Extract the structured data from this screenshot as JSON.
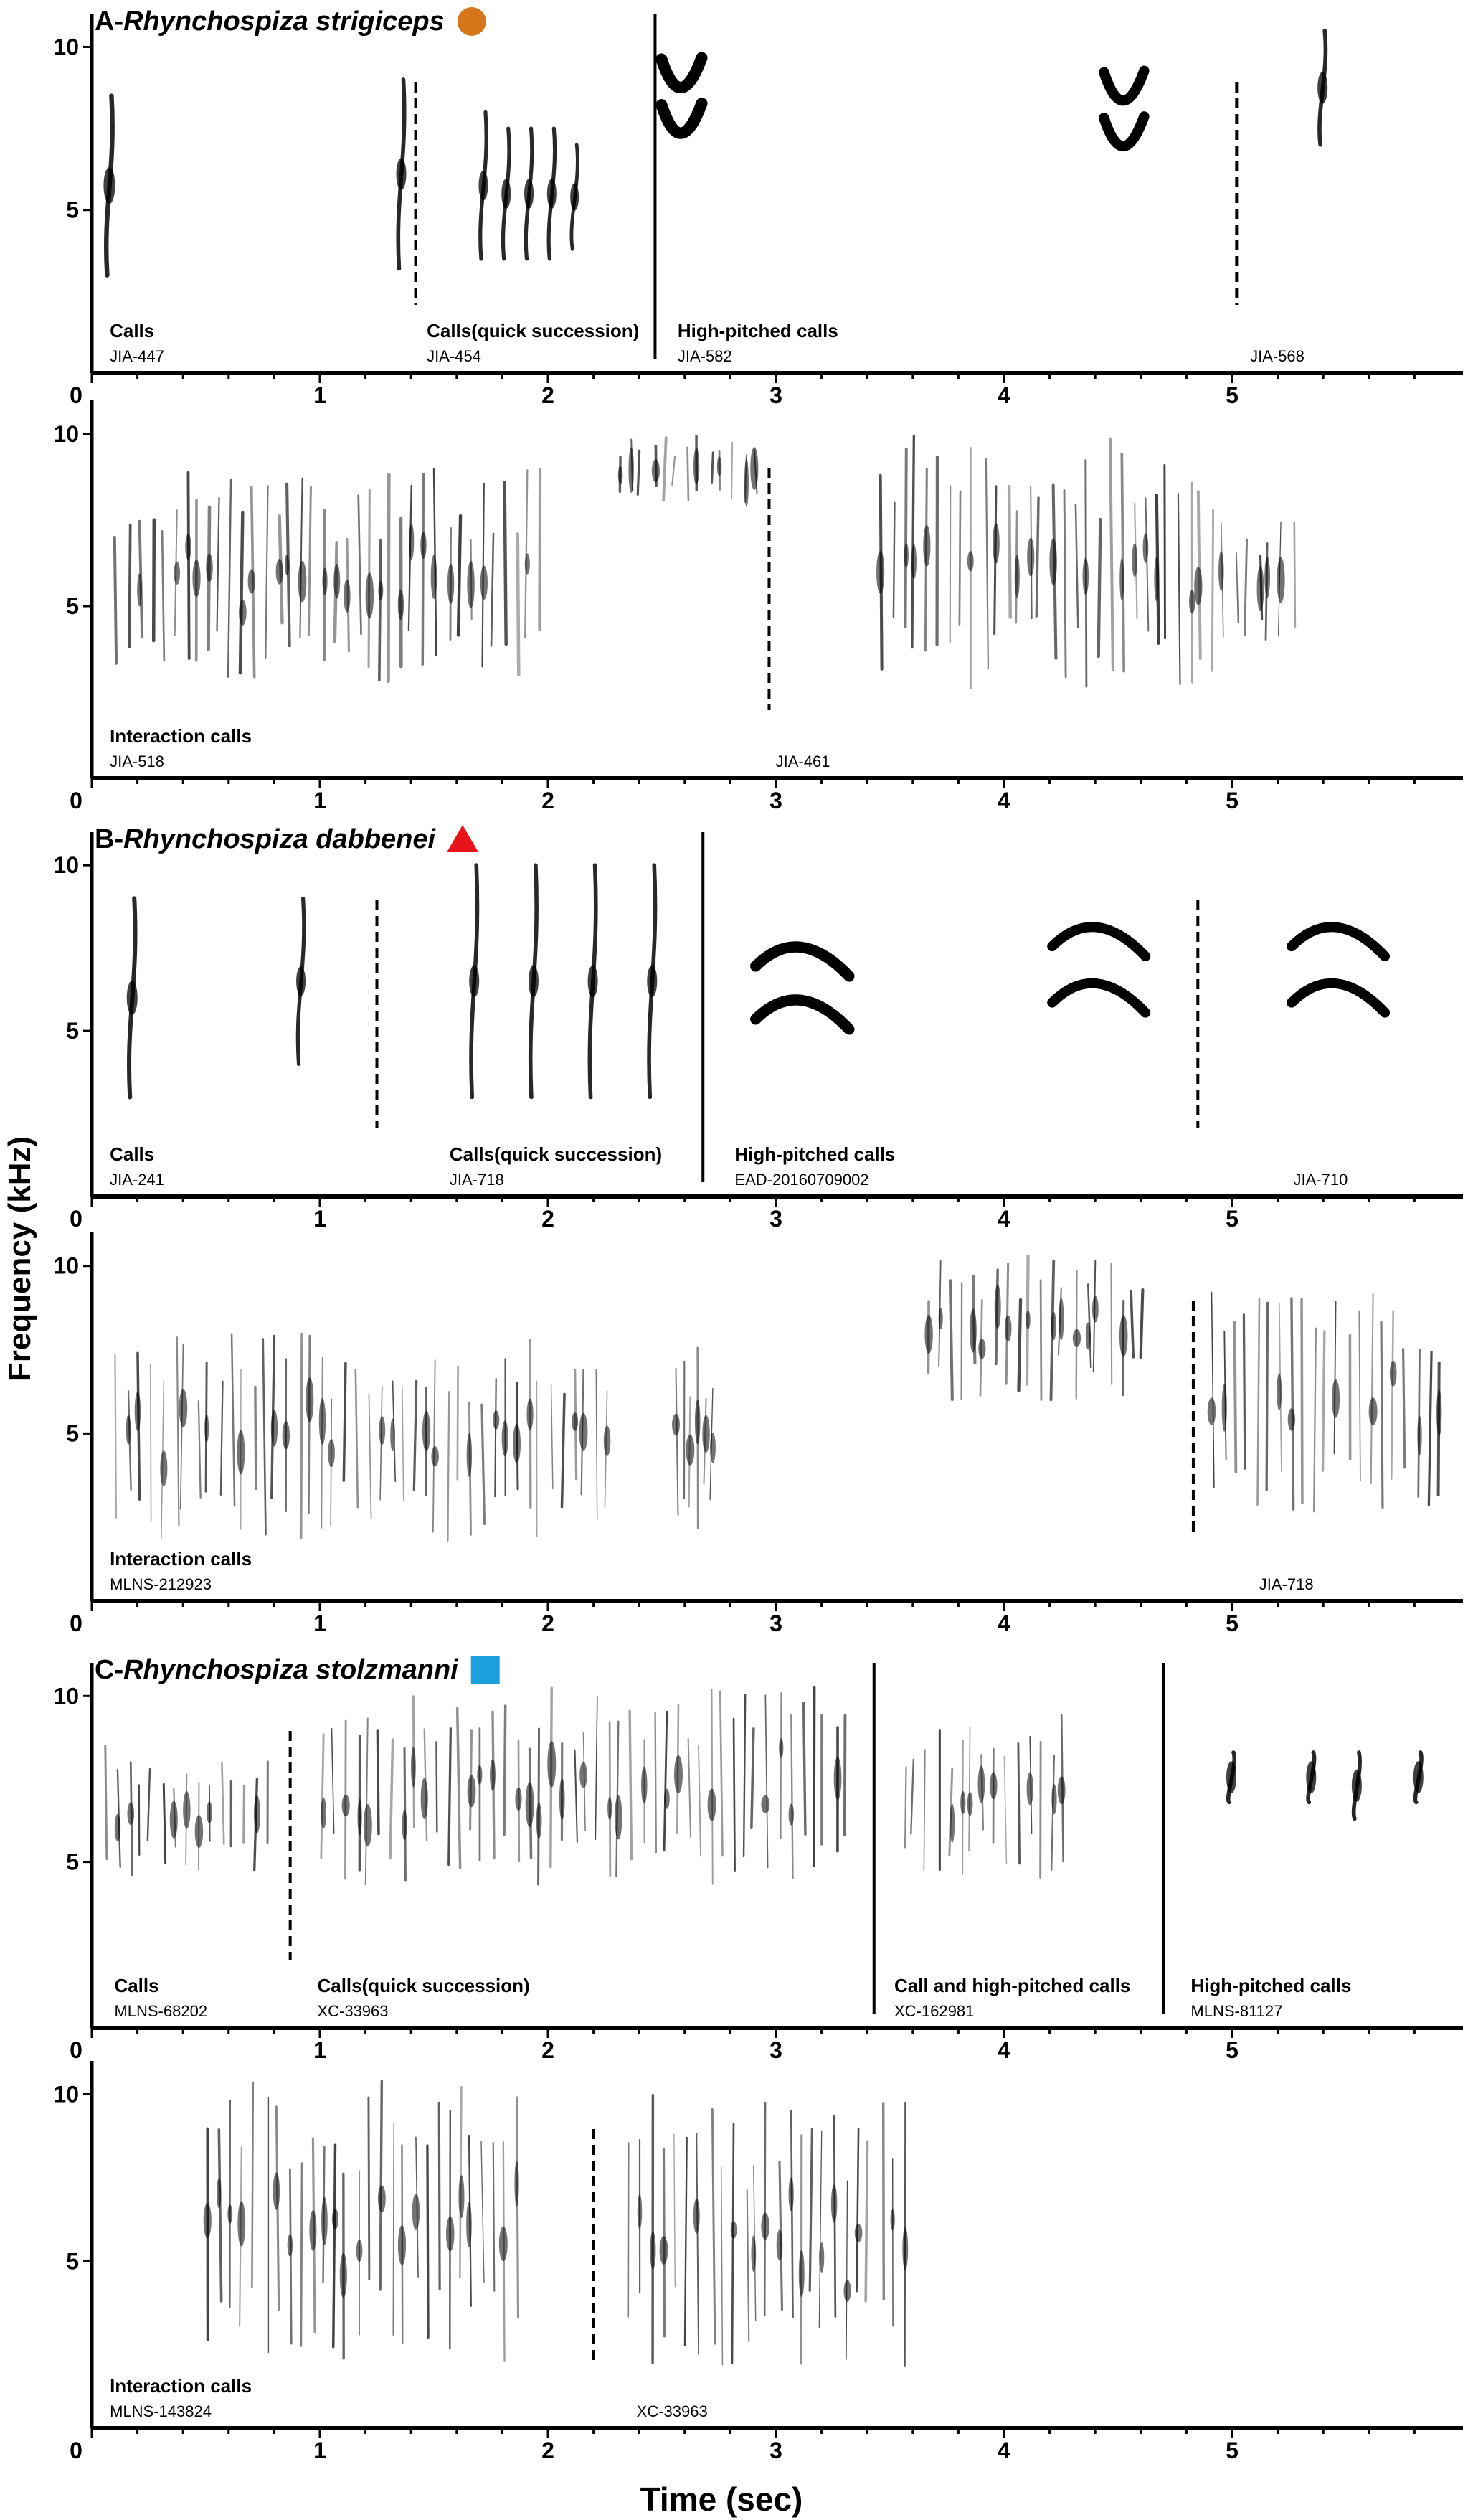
{
  "chart_data": {
    "type": "spectrogram",
    "ylabel": "Frequency (kHz)",
    "xlabel": "Time (sec)",
    "xlim": [
      0,
      6
    ],
    "ylim": [
      0,
      11
    ],
    "x_ticks": [
      0,
      1,
      2,
      3,
      4,
      5
    ],
    "y_ticks": [
      5,
      10
    ],
    "y_zero_label": "0",
    "panels": [
      {
        "id": "A1",
        "species_prefix": "A-",
        "species": "Rhynchospiza strigiceps",
        "marker": {
          "shape": "circle",
          "color": "#D6761A"
        },
        "separators": [
          {
            "x": 1.42,
            "style": "dashed"
          },
          {
            "x": 2.47,
            "style": "solid"
          },
          {
            "x": 5.02,
            "style": "dashed"
          }
        ],
        "segments": [
          {
            "label": "Calls",
            "code": "JIA-447",
            "x": 0.06
          },
          {
            "label": "Calls(quick succession)",
            "code": "JIA-454",
            "x": 1.45
          },
          {
            "label": "High-pitched calls",
            "code": "JIA-582",
            "x": 2.55
          },
          {
            "label": "",
            "code": "JIA-568",
            "x": 5.06
          }
        ],
        "events": [
          {
            "t": 0.08,
            "f0": 3.0,
            "f1": 8.5,
            "kind": "calls",
            "weight": 1.6
          },
          {
            "t": 1.36,
            "f0": 3.2,
            "f1": 9.0,
            "kind": "calls",
            "weight": 1.4
          },
          {
            "t": 1.72,
            "f0": 3.5,
            "f1": 8.0,
            "kind": "calls",
            "weight": 1.3
          },
          {
            "t": 1.82,
            "f0": 3.5,
            "f1": 7.5,
            "kind": "calls",
            "weight": 1.3
          },
          {
            "t": 1.92,
            "f0": 3.5,
            "f1": 7.5,
            "kind": "calls",
            "weight": 1.3
          },
          {
            "t": 2.02,
            "f0": 3.5,
            "f1": 7.5,
            "kind": "calls",
            "weight": 1.3
          },
          {
            "t": 2.12,
            "f0": 3.8,
            "f1": 7.0,
            "kind": "calls",
            "weight": 1.2
          },
          {
            "t": 2.58,
            "f_mid": 8.7,
            "kind": "chevron",
            "weight": 1.8
          },
          {
            "t": 2.58,
            "f_mid": 7.3,
            "kind": "chevron",
            "weight": 1.8
          },
          {
            "t": 4.52,
            "f_mid": 8.3,
            "kind": "chevron",
            "weight": 1.6
          },
          {
            "t": 4.52,
            "f_mid": 6.9,
            "kind": "chevron",
            "weight": 1.6
          },
          {
            "t": 5.4,
            "f0": 7.0,
            "f1": 10.5,
            "kind": "calls",
            "weight": 1.4
          }
        ]
      },
      {
        "id": "A2",
        "separators": [
          {
            "x": 2.97,
            "style": "dashed"
          }
        ],
        "segments": [
          {
            "label": "Interaction calls",
            "code": "JIA-518",
            "x": 0.06
          },
          {
            "label": "",
            "code": "JIA-461",
            "x": 2.98
          }
        ],
        "events": [
          {
            "t0": 0.1,
            "t1": 2.0,
            "f0": 2.8,
            "f1": 9.0,
            "kind": "dense",
            "weight": 1.2
          },
          {
            "t0": 2.3,
            "t1": 2.95,
            "f0": 8.0,
            "f1": 10.0,
            "kind": "dense",
            "weight": 1.0
          },
          {
            "t0": 3.45,
            "t1": 4.95,
            "f0": 2.5,
            "f1": 10.0,
            "kind": "dense",
            "weight": 1.1
          },
          {
            "t0": 4.95,
            "t1": 5.3,
            "f0": 3.5,
            "f1": 7.5,
            "kind": "dense",
            "weight": 0.8
          }
        ]
      },
      {
        "id": "B1",
        "species_prefix": "B-",
        "species": "Rhynchospiza dabbenei",
        "marker": {
          "shape": "triangle",
          "color": "#E8141B"
        },
        "separators": [
          {
            "x": 1.25,
            "style": "dashed"
          },
          {
            "x": 2.68,
            "style": "solid"
          },
          {
            "x": 4.85,
            "style": "dashed"
          }
        ],
        "segments": [
          {
            "label": "Calls",
            "code": "JIA-241",
            "x": 0.06
          },
          {
            "label": "Calls(quick succession)",
            "code": "JIA-718",
            "x": 1.55
          },
          {
            "label": "High-pitched calls",
            "code": "EAD-20160709002",
            "x": 2.8
          },
          {
            "label": "",
            "code": "JIA-710",
            "x": 5.25
          }
        ],
        "events": [
          {
            "t": 0.18,
            "f0": 3.0,
            "f1": 9.0,
            "kind": "calls",
            "weight": 1.5
          },
          {
            "t": 0.92,
            "f0": 4.0,
            "f1": 9.0,
            "kind": "calls",
            "weight": 1.3
          },
          {
            "t": 1.68,
            "f0": 3.0,
            "f1": 10.0,
            "kind": "calls",
            "weight": 1.4
          },
          {
            "t": 1.94,
            "f0": 3.0,
            "f1": 10.0,
            "kind": "calls",
            "weight": 1.4
          },
          {
            "t": 2.2,
            "f0": 3.0,
            "f1": 10.0,
            "kind": "calls",
            "weight": 1.4
          },
          {
            "t": 2.46,
            "f0": 3.0,
            "f1": 10.0,
            "kind": "calls",
            "weight": 1.4
          },
          {
            "t": 3.1,
            "f_mid": 7.3,
            "kind": "arc",
            "weight": 2.2
          },
          {
            "t": 3.1,
            "f_mid": 5.7,
            "kind": "arc",
            "weight": 2.2
          },
          {
            "t": 4.4,
            "f_mid": 7.9,
            "kind": "arc",
            "weight": 2.0
          },
          {
            "t": 4.4,
            "f_mid": 6.2,
            "kind": "arc",
            "weight": 2.0
          },
          {
            "t": 5.45,
            "f_mid": 7.9,
            "kind": "arc",
            "weight": 2.0
          },
          {
            "t": 5.45,
            "f_mid": 6.2,
            "kind": "arc",
            "weight": 2.0
          }
        ]
      },
      {
        "id": "B2",
        "separators": [
          {
            "x": 4.83,
            "style": "dashed"
          }
        ],
        "segments": [
          {
            "label": "Interaction calls",
            "code": "MLNS-212923",
            "x": 0.06
          },
          {
            "label": "",
            "code": "JIA-718",
            "x": 5.1
          }
        ],
        "events": [
          {
            "t0": 0.1,
            "t1": 2.3,
            "f0": 1.8,
            "f1": 8.0,
            "kind": "dense",
            "weight": 0.9
          },
          {
            "t0": 2.55,
            "t1": 2.75,
            "f0": 2.0,
            "f1": 8.0,
            "kind": "dense",
            "weight": 0.8
          },
          {
            "t0": 3.65,
            "t1": 4.65,
            "f0": 6.0,
            "f1": 10.5,
            "kind": "dense",
            "weight": 1.1
          },
          {
            "t0": 4.9,
            "t1": 5.95,
            "f0": 2.5,
            "f1": 9.5,
            "kind": "dense",
            "weight": 1.0
          }
        ]
      },
      {
        "id": "C1",
        "species_prefix": "C-",
        "species": "Rhynchospiza stolzmanni",
        "marker": {
          "shape": "square",
          "color": "#1AA0DA"
        },
        "separators": [
          {
            "x": 0.87,
            "style": "dashed"
          },
          {
            "x": 3.43,
            "style": "solid"
          },
          {
            "x": 4.7,
            "style": "solid"
          }
        ],
        "segments": [
          {
            "label": "Calls",
            "code": "MLNS-68202",
            "x": 0.08
          },
          {
            "label": "Calls(quick succession)",
            "code": "XC-33963",
            "x": 0.97
          },
          {
            "label": "Call and high-pitched calls",
            "code": "XC-162981",
            "x": 3.5
          },
          {
            "label": "High-pitched calls",
            "code": "MLNS-81127",
            "x": 4.8
          }
        ],
        "events": [
          {
            "t0": 0.05,
            "t1": 0.8,
            "f0": 4.5,
            "f1": 8.5,
            "kind": "dense",
            "weight": 0.9
          },
          {
            "t0": 1.0,
            "t1": 3.35,
            "f0": 4.3,
            "f1": 10.3,
            "kind": "dense",
            "weight": 1.0
          },
          {
            "t0": 3.55,
            "t1": 4.3,
            "f0": 4.5,
            "f1": 9.5,
            "kind": "dense",
            "weight": 0.9
          },
          {
            "t": 5.0,
            "f0": 6.8,
            "f1": 8.3,
            "kind": "calls",
            "weight": 1.4
          },
          {
            "t": 5.35,
            "f0": 6.8,
            "f1": 8.3,
            "kind": "calls",
            "weight": 1.4
          },
          {
            "t": 5.55,
            "f0": 6.3,
            "f1": 8.3,
            "kind": "calls",
            "weight": 1.4
          },
          {
            "t": 5.82,
            "f0": 6.8,
            "f1": 8.3,
            "kind": "calls",
            "weight": 1.4
          }
        ]
      },
      {
        "id": "C2",
        "separators": [
          {
            "x": 2.2,
            "style": "dashed"
          }
        ],
        "segments": [
          {
            "label": "Interaction calls",
            "code": "MLNS-143824",
            "x": 0.06
          },
          {
            "label": "",
            "code": "XC-33963",
            "x": 2.37
          }
        ],
        "events": [
          {
            "t0": 0.5,
            "t1": 1.9,
            "f0": 2.0,
            "f1": 10.5,
            "kind": "dense",
            "weight": 0.9
          },
          {
            "t0": 2.35,
            "t1": 3.6,
            "f0": 1.8,
            "f1": 10.0,
            "kind": "dense",
            "weight": 0.9
          }
        ]
      }
    ]
  }
}
